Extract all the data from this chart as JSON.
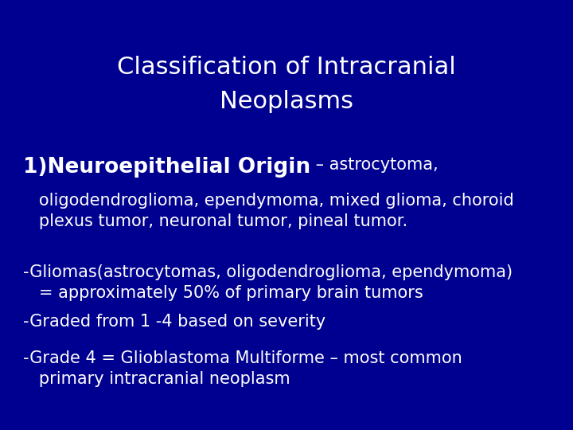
{
  "background_color": "#000090",
  "text_color": "#FFFFFF",
  "title_line1": "Classification of Intracranial",
  "title_line2": "Neoplasms",
  "title_fontsize": 22,
  "title_fontweight": "normal",
  "section1_bold_text": "1)Neuroepithelial Origin",
  "section1_bold_fontsize": 19,
  "section1_dash_text": " – astrocytoma,",
  "section1_dash_fontsize": 15,
  "section1_sub_text": "   oligodendroglioma, ependymoma, mixed glioma, choroid\n   plexus tumor, neuronal tumor, pineal tumor.",
  "section1_sub_fontsize": 15,
  "bullet1_line1": "-Gliomas(astrocytomas, oligodendroglioma, ependymoma)",
  "bullet1_line2": "   = approximately 50% of primary brain tumors",
  "bullet2": "-Graded from 1 -4 based on severity",
  "bullet3_line1": "-Grade 4 = Glioblastoma Multiforme – most common",
  "bullet3_line2": "   primary intracranial neoplasm",
  "body_fontsize": 15
}
